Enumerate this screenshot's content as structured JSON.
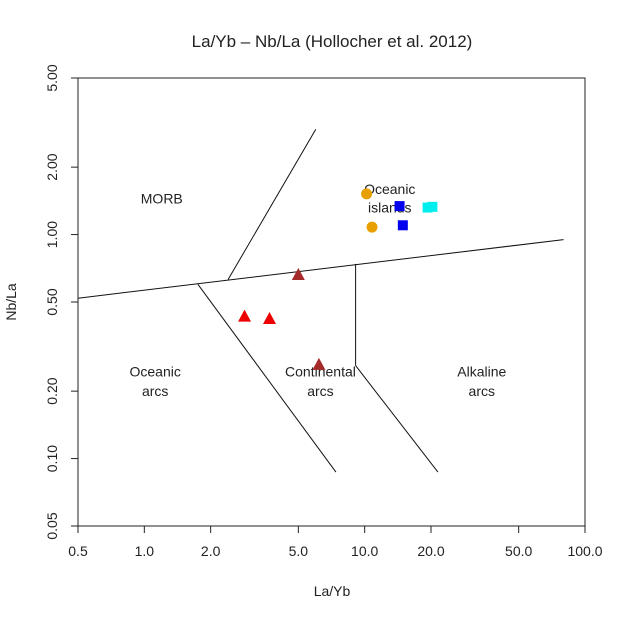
{
  "chart_data": {
    "type": "scatter",
    "title": "La/Yb – Nb/La (Hollocher et al. 2012)",
    "xlabel": "La/Yb",
    "ylabel": "Nb/La",
    "xscale": "log",
    "yscale": "log",
    "xlim": [
      0.5,
      100
    ],
    "ylim": [
      0.05,
      5
    ],
    "grid": false,
    "xticks": [
      {
        "v": 0.5,
        "label": "0.5"
      },
      {
        "v": 1,
        "label": "1.0"
      },
      {
        "v": 2,
        "label": "2.0"
      },
      {
        "v": 5,
        "label": "5.0"
      },
      {
        "v": 10,
        "label": "10.0"
      },
      {
        "v": 20,
        "label": "20.0"
      },
      {
        "v": 50,
        "label": "50.0"
      },
      {
        "v": 100,
        "label": "100.0"
      }
    ],
    "yticks": [
      {
        "v": 0.05,
        "label": "0.05"
      },
      {
        "v": 0.1,
        "label": "0.10"
      },
      {
        "v": 0.2,
        "label": "0.20"
      },
      {
        "v": 0.5,
        "label": "0.50"
      },
      {
        "v": 1,
        "label": "1.00"
      },
      {
        "v": 2,
        "label": "2.00"
      },
      {
        "v": 5,
        "label": "5.00"
      }
    ],
    "field_labels": [
      {
        "text": "MORB",
        "x": 1.2,
        "y": 1.45
      },
      {
        "text": "Oceanic",
        "x": 13.0,
        "y": 1.6
      },
      {
        "text": "islands",
        "x": 13.0,
        "y": 1.32
      },
      {
        "text": "Oceanic",
        "x": 1.12,
        "y": 0.245
      },
      {
        "text": "arcs",
        "x": 1.12,
        "y": 0.2
      },
      {
        "text": "Continental",
        "x": 6.3,
        "y": 0.245
      },
      {
        "text": "arcs",
        "x": 6.3,
        "y": 0.2
      },
      {
        "text": "Alkaline",
        "x": 34.0,
        "y": 0.245
      },
      {
        "text": "arcs",
        "x": 34.0,
        "y": 0.2
      }
    ],
    "boundaries": [
      {
        "name": "main-divide",
        "points": [
          [
            0.5,
            0.52
          ],
          [
            80,
            0.95
          ]
        ]
      },
      {
        "name": "morb-oib-divide",
        "points": [
          [
            2.4,
            0.63
          ],
          [
            6.0,
            2.95
          ]
        ]
      },
      {
        "name": "oceanic-continental-divide",
        "points": [
          [
            1.75,
            0.6
          ],
          [
            7.4,
            0.087
          ]
        ]
      },
      {
        "name": "continental-alkaline-step",
        "points": [
          [
            9.1,
            0.74
          ],
          [
            9.1,
            0.26
          ]
        ]
      },
      {
        "name": "continental-alkaline-divide",
        "points": [
          [
            9.1,
            0.26
          ],
          [
            21.5,
            0.087
          ]
        ]
      }
    ],
    "series": [
      {
        "marker": "circle",
        "color": "#e8a000",
        "points": [
          [
            10.2,
            1.52
          ],
          [
            10.8,
            1.08
          ]
        ]
      },
      {
        "marker": "square",
        "color": "#0000ee",
        "points": [
          [
            14.4,
            1.34
          ],
          [
            14.9,
            1.1
          ]
        ]
      },
      {
        "marker": "square",
        "color": "#00eeee",
        "points": [
          [
            19.3,
            1.32
          ],
          [
            20.3,
            1.33
          ]
        ]
      },
      {
        "marker": "triangle",
        "color": "#ee0000",
        "points": [
          [
            2.85,
            0.43
          ],
          [
            3.7,
            0.42
          ]
        ]
      },
      {
        "marker": "triangle",
        "color": "#a52a2a",
        "points": [
          [
            5.0,
            0.66
          ],
          [
            6.2,
            0.262
          ]
        ]
      }
    ]
  }
}
